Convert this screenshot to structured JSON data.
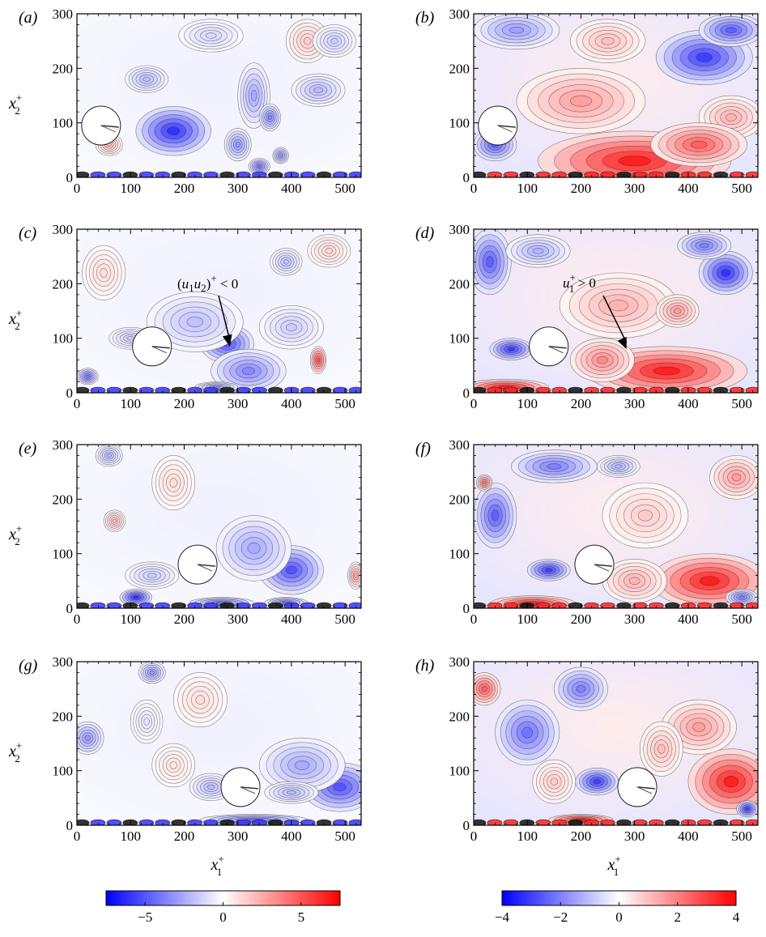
{
  "panels": [
    {
      "label": "(a)",
      "quantity": "u1u2",
      "x_range": [
        0,
        530
      ],
      "y_range": [
        0,
        300
      ],
      "x_ticks": [
        "0",
        "100",
        "200",
        "300",
        "400",
        "500"
      ],
      "y_ticks": [
        "0",
        "100",
        "200",
        "300"
      ]
    },
    {
      "label": "(b)",
      "quantity": "u1",
      "x_range": [
        0,
        530
      ],
      "y_range": [
        0,
        300
      ],
      "x_ticks": [
        "0",
        "100",
        "200",
        "300",
        "400",
        "500"
      ],
      "y_ticks": [
        "0",
        "100",
        "200",
        "300"
      ]
    },
    {
      "label": "(c)",
      "quantity": "u1u2",
      "x_range": [
        0,
        530
      ],
      "y_range": [
        0,
        300
      ],
      "x_ticks": [
        "0",
        "100",
        "200",
        "300",
        "400",
        "500"
      ],
      "y_ticks": [
        "0",
        "100",
        "200",
        "300"
      ]
    },
    {
      "label": "(d)",
      "quantity": "u1",
      "x_range": [
        0,
        530
      ],
      "y_range": [
        0,
        300
      ],
      "x_ticks": [
        "0",
        "100",
        "200",
        "300",
        "400",
        "500"
      ],
      "y_ticks": [
        "0",
        "100",
        "200",
        "300"
      ]
    },
    {
      "label": "(e)",
      "quantity": "u1u2",
      "x_range": [
        0,
        530
      ],
      "y_range": [
        0,
        300
      ],
      "x_ticks": [
        "0",
        "100",
        "200",
        "300",
        "400",
        "500"
      ],
      "y_ticks": [
        "0",
        "100",
        "200",
        "300"
      ]
    },
    {
      "label": "(f)",
      "quantity": "u1",
      "x_range": [
        0,
        530
      ],
      "y_range": [
        0,
        300
      ],
      "x_ticks": [
        "0",
        "100",
        "200",
        "300",
        "400",
        "500"
      ],
      "y_ticks": [
        "0",
        "100",
        "200",
        "300"
      ]
    },
    {
      "label": "(g)",
      "quantity": "u1u2",
      "x_range": [
        0,
        530
      ],
      "y_range": [
        0,
        300
      ],
      "x_ticks": [
        "0",
        "100",
        "200",
        "300",
        "400",
        "500"
      ],
      "y_ticks": [
        "0",
        "100",
        "200",
        "300"
      ]
    },
    {
      "label": "(h)",
      "quantity": "u1",
      "x_range": [
        0,
        530
      ],
      "y_range": [
        0,
        300
      ],
      "x_ticks": [
        "0",
        "100",
        "200",
        "300",
        "400",
        "500"
      ],
      "y_ticks": [
        "0",
        "100",
        "200",
        "300"
      ]
    }
  ],
  "axis_labels": {
    "y_base": "x",
    "y_sub": "2",
    "y_sup": "+",
    "x_base": "x",
    "x_sub": "1",
    "x_sup": "+"
  },
  "annotations": [
    {
      "panel": 2,
      "text_parts": [
        "(",
        "u",
        "1",
        "u",
        "2",
        ")",
        "+",
        " < 0"
      ],
      "target": [
        285,
        85
      ]
    },
    {
      "panel": 3,
      "text_parts": [
        "u",
        "1",
        "+",
        " > 0"
      ],
      "target": [
        285,
        80
      ]
    }
  ],
  "colorbars": [
    {
      "range": [
        -7.5,
        7.5
      ],
      "tick_labels": [
        "−5",
        "0",
        "5"
      ],
      "tick_values": [
        -5,
        0,
        5
      ]
    },
    {
      "range": [
        -4,
        4
      ],
      "tick_labels": [
        "−4",
        "−2",
        "0",
        "2",
        "4"
      ],
      "tick_values": [
        -4,
        -2,
        0,
        2,
        4
      ]
    }
  ],
  "colors": {
    "negative": "#0000ff",
    "zero": "#ffffff",
    "positive": "#ff0000"
  },
  "chart_data": [
    {
      "type": "heatmap",
      "panel": "(a)",
      "x_range": [
        0,
        530
      ],
      "y_range": [
        0,
        300
      ],
      "cylinder_center": [
        45,
        95
      ],
      "blobs": [
        [
          180,
          85,
          70,
          45,
          -6
        ],
        [
          130,
          180,
          40,
          25,
          -2
        ],
        [
          330,
          150,
          30,
          60,
          -2.5
        ],
        [
          360,
          110,
          20,
          25,
          -3.5
        ],
        [
          450,
          160,
          50,
          30,
          -2
        ],
        [
          430,
          250,
          40,
          40,
          1.5
        ],
        [
          300,
          60,
          25,
          30,
          -3
        ],
        [
          340,
          20,
          20,
          15,
          -4
        ],
        [
          380,
          40,
          15,
          15,
          -3
        ],
        [
          480,
          250,
          40,
          30,
          -1.5
        ],
        [
          250,
          260,
          60,
          30,
          -1.2
        ],
        [
          60,
          60,
          25,
          20,
          2
        ]
      ]
    },
    {
      "type": "heatmap",
      "panel": "(b)",
      "x_range": [
        0,
        530
      ],
      "y_range": [
        0,
        300
      ],
      "cylinder_center": [
        45,
        95
      ],
      "blobs": [
        [
          300,
          30,
          180,
          55,
          3.5
        ],
        [
          200,
          140,
          120,
          60,
          1.5
        ],
        [
          430,
          220,
          90,
          50,
          -3
        ],
        [
          480,
          270,
          60,
          30,
          -2.5
        ],
        [
          80,
          270,
          80,
          35,
          -1.5
        ],
        [
          480,
          110,
          60,
          40,
          1.2
        ],
        [
          40,
          60,
          40,
          30,
          -2.5
        ],
        [
          420,
          60,
          90,
          40,
          2.5
        ],
        [
          250,
          250,
          70,
          40,
          1
        ]
      ]
    },
    {
      "type": "heatmap",
      "panel": "(c)",
      "x_range": [
        0,
        530
      ],
      "y_range": [
        0,
        300
      ],
      "cylinder_center": [
        140,
        85
      ],
      "blobs": [
        [
          280,
          90,
          50,
          35,
          -5
        ],
        [
          320,
          40,
          70,
          40,
          -3.5
        ],
        [
          220,
          130,
          90,
          55,
          -1.8
        ],
        [
          450,
          60,
          15,
          25,
          5
        ],
        [
          20,
          30,
          20,
          15,
          -4
        ],
        [
          400,
          120,
          60,
          40,
          -1.5
        ],
        [
          390,
          240,
          30,
          25,
          -1.8
        ],
        [
          50,
          220,
          40,
          50,
          1
        ],
        [
          470,
          260,
          40,
          30,
          1.2
        ],
        [
          100,
          100,
          40,
          20,
          -1.5
        ],
        [
          260,
          10,
          40,
          10,
          -3
        ]
      ]
    },
    {
      "type": "heatmap",
      "panel": "(d)",
      "x_range": [
        0,
        530
      ],
      "y_range": [
        0,
        300
      ],
      "cylinder_center": [
        140,
        85
      ],
      "blobs": [
        [
          360,
          40,
          150,
          45,
          3.5
        ],
        [
          60,
          10,
          80,
          15,
          3.5
        ],
        [
          270,
          160,
          110,
          60,
          1.2
        ],
        [
          470,
          220,
          50,
          40,
          -3.2
        ],
        [
          30,
          240,
          40,
          60,
          -2.5
        ],
        [
          70,
          80,
          40,
          20,
          -3
        ],
        [
          380,
          150,
          40,
          30,
          1.5
        ],
        [
          240,
          60,
          60,
          40,
          1.8
        ],
        [
          120,
          260,
          60,
          30,
          -1.2
        ],
        [
          430,
          270,
          50,
          25,
          -2
        ]
      ]
    },
    {
      "type": "heatmap",
      "panel": "(e)",
      "x_range": [
        0,
        530
      ],
      "y_range": [
        0,
        300
      ],
      "cylinder_center": [
        225,
        80
      ],
      "blobs": [
        [
          400,
          70,
          60,
          45,
          -5
        ],
        [
          330,
          110,
          70,
          60,
          -2.5
        ],
        [
          110,
          20,
          30,
          15,
          -6
        ],
        [
          270,
          10,
          60,
          10,
          -4
        ],
        [
          180,
          230,
          40,
          50,
          1
        ],
        [
          70,
          160,
          20,
          20,
          2
        ],
        [
          60,
          280,
          25,
          20,
          -2
        ],
        [
          140,
          60,
          50,
          25,
          -1.5
        ],
        [
          520,
          60,
          15,
          25,
          2.5
        ],
        [
          390,
          10,
          40,
          10,
          -4
        ]
      ]
    },
    {
      "type": "heatmap",
      "panel": "(f)",
      "x_range": [
        0,
        530
      ],
      "y_range": [
        0,
        300
      ],
      "cylinder_center": [
        225,
        80
      ],
      "blobs": [
        [
          440,
          50,
          110,
          50,
          3.5
        ],
        [
          110,
          8,
          80,
          15,
          3.5
        ],
        [
          40,
          170,
          40,
          60,
          -2.5
        ],
        [
          150,
          260,
          80,
          30,
          -2
        ],
        [
          140,
          70,
          40,
          20,
          -3
        ],
        [
          320,
          170,
          80,
          60,
          0.8
        ],
        [
          300,
          50,
          60,
          40,
          1.2
        ],
        [
          490,
          240,
          50,
          40,
          1.5
        ],
        [
          20,
          230,
          15,
          15,
          2
        ],
        [
          270,
          260,
          40,
          20,
          -1.2
        ],
        [
          500,
          20,
          30,
          15,
          -2
        ]
      ]
    },
    {
      "type": "heatmap",
      "panel": "(g)",
      "x_range": [
        0,
        530
      ],
      "y_range": [
        0,
        300
      ],
      "cylinder_center": [
        305,
        70
      ],
      "blobs": [
        [
          490,
          70,
          70,
          45,
          -5
        ],
        [
          420,
          110,
          80,
          50,
          -2.5
        ],
        [
          140,
          280,
          25,
          20,
          -3
        ],
        [
          20,
          160,
          30,
          30,
          -3
        ],
        [
          230,
          230,
          50,
          50,
          1
        ],
        [
          250,
          70,
          40,
          25,
          -2
        ],
        [
          330,
          10,
          100,
          10,
          -4
        ],
        [
          180,
          110,
          40,
          40,
          0.8
        ],
        [
          130,
          190,
          30,
          40,
          -0.8
        ],
        [
          400,
          60,
          50,
          20,
          -2
        ]
      ]
    },
    {
      "type": "heatmap",
      "panel": "(h)",
      "x_range": [
        0,
        530
      ],
      "y_range": [
        0,
        300
      ],
      "cylinder_center": [
        305,
        70
      ],
      "blobs": [
        [
          480,
          80,
          80,
          60,
          3.5
        ],
        [
          20,
          250,
          30,
          30,
          2.5
        ],
        [
          100,
          170,
          60,
          60,
          -2.2
        ],
        [
          200,
          250,
          50,
          40,
          -2
        ],
        [
          230,
          80,
          40,
          25,
          -3
        ],
        [
          420,
          180,
          70,
          50,
          1.5
        ],
        [
          200,
          10,
          60,
          10,
          3.5
        ],
        [
          510,
          30,
          20,
          15,
          -3
        ],
        [
          150,
          80,
          40,
          40,
          0.8
        ],
        [
          350,
          140,
          40,
          50,
          1
        ]
      ]
    }
  ]
}
